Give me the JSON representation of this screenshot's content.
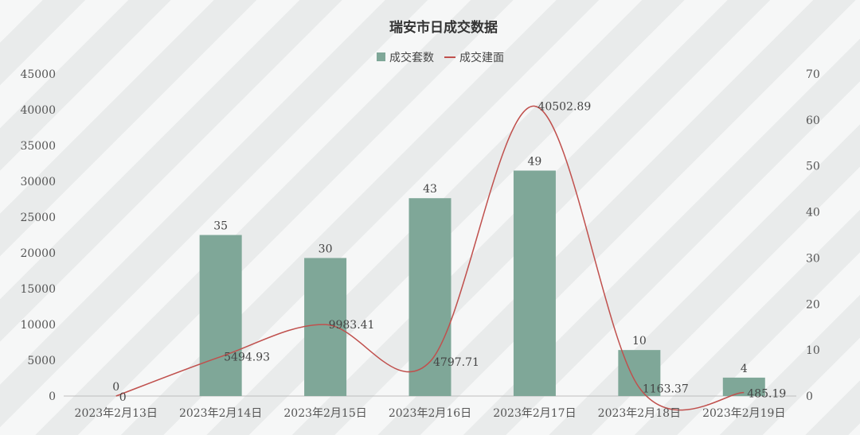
{
  "chart_data": {
    "type": "bar",
    "title": "瑞安市日成交数据",
    "categories": [
      "2023年2月13日",
      "2023年2月14日",
      "2023年2月15日",
      "2023年2月16日",
      "2023年2月17日",
      "2023年2月18日",
      "2023年2月19日"
    ],
    "series": [
      {
        "name": "成交套数",
        "type": "bar",
        "axis": "right",
        "color": "#7fa798",
        "values": [
          0,
          35,
          30,
          43,
          49,
          10,
          4
        ],
        "labels": [
          "0",
          "35",
          "30",
          "43",
          "49",
          "10",
          "4"
        ]
      },
      {
        "name": "成交建面",
        "type": "line",
        "smooth": true,
        "axis": "left",
        "color": "#c0504d",
        "values": [
          0,
          5494.93,
          9983.41,
          4797.71,
          40502.89,
          1163.37,
          485.19
        ],
        "labels": [
          "0",
          "5494.93",
          "9983.41",
          "4797.71",
          "40502.89",
          "1163.37",
          "485.19"
        ]
      }
    ],
    "left_axis": {
      "ylim": [
        0,
        45000
      ],
      "ticks": [
        "0",
        "5000",
        "10000",
        "15000",
        "20000",
        "25000",
        "30000",
        "35000",
        "40000",
        "45000"
      ]
    },
    "right_axis": {
      "ylim": [
        0,
        70
      ],
      "ticks": [
        "0",
        "10",
        "20",
        "30",
        "40",
        "50",
        "60",
        "70"
      ]
    },
    "legend_position": "top-center",
    "grid": false
  }
}
